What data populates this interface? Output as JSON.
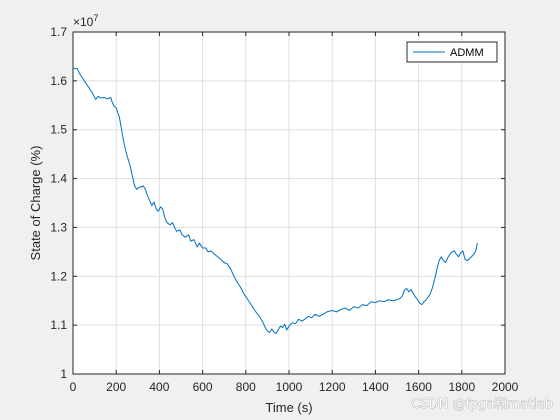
{
  "chart_data": {
    "type": "line",
    "title": "",
    "xlabel": "Time (s)",
    "ylabel": "State of Charge (%)",
    "xlim": [
      0,
      2000
    ],
    "ylim": [
      1,
      1.7
    ],
    "y_multiplier_label": "×10",
    "y_multiplier_exponent": "7",
    "x_ticks": [
      0,
      200,
      400,
      600,
      800,
      1000,
      1200,
      1400,
      1600,
      1800,
      2000
    ],
    "y_ticks": [
      1,
      1.1,
      1.2,
      1.3,
      1.4,
      1.5,
      1.6,
      1.7
    ],
    "grid": true,
    "legend_position": "top-right",
    "series": [
      {
        "name": "ADMM",
        "color": "#0072bd",
        "x": [
          0,
          20,
          30,
          45,
          60,
          75,
          90,
          105,
          115,
          130,
          145,
          160,
          175,
          180,
          190,
          200,
          215,
          225,
          235,
          245,
          255,
          265,
          275,
          285,
          295,
          305,
          315,
          325,
          335,
          345,
          355,
          365,
          375,
          385,
          395,
          405,
          415,
          425,
          435,
          450,
          460,
          470,
          480,
          495,
          505,
          520,
          535,
          545,
          560,
          575,
          585,
          600,
          615,
          625,
          640,
          655,
          670,
          690,
          700,
          715,
          730,
          745,
          760,
          775,
          790,
          805,
          820,
          835,
          850,
          865,
          880,
          890,
          900,
          910,
          920,
          930,
          940,
          950,
          960,
          970,
          980,
          990,
          1000,
          1015,
          1030,
          1045,
          1060,
          1075,
          1090,
          1105,
          1120,
          1140,
          1160,
          1180,
          1200,
          1220,
          1240,
          1260,
          1280,
          1300,
          1320,
          1340,
          1360,
          1380,
          1400,
          1420,
          1440,
          1460,
          1480,
          1500,
          1515,
          1525,
          1535,
          1545,
          1555,
          1565,
          1575,
          1585,
          1595,
          1605,
          1615,
          1625,
          1635,
          1645,
          1655,
          1665,
          1675,
          1685,
          1695,
          1705,
          1715,
          1725,
          1735,
          1745,
          1755,
          1765,
          1775,
          1785,
          1795,
          1805,
          1815,
          1825,
          1835,
          1845,
          1855,
          1865,
          1872
        ],
        "values": [
          1.625,
          1.625,
          1.615,
          1.605,
          1.595,
          1.585,
          1.575,
          1.562,
          1.568,
          1.565,
          1.566,
          1.563,
          1.566,
          1.558,
          1.548,
          1.545,
          1.525,
          1.5,
          1.475,
          1.455,
          1.44,
          1.425,
          1.405,
          1.385,
          1.378,
          1.382,
          1.383,
          1.385,
          1.378,
          1.365,
          1.355,
          1.345,
          1.352,
          1.338,
          1.333,
          1.342,
          1.338,
          1.32,
          1.31,
          1.305,
          1.31,
          1.3,
          1.292,
          1.295,
          1.285,
          1.28,
          1.285,
          1.272,
          1.275,
          1.26,
          1.268,
          1.258,
          1.258,
          1.25,
          1.252,
          1.245,
          1.24,
          1.232,
          1.228,
          1.225,
          1.215,
          1.2,
          1.188,
          1.178,
          1.165,
          1.155,
          1.145,
          1.135,
          1.125,
          1.117,
          1.105,
          1.095,
          1.088,
          1.085,
          1.092,
          1.086,
          1.083,
          1.09,
          1.098,
          1.095,
          1.102,
          1.09,
          1.098,
          1.105,
          1.103,
          1.112,
          1.108,
          1.113,
          1.118,
          1.115,
          1.122,
          1.118,
          1.123,
          1.128,
          1.13,
          1.127,
          1.132,
          1.135,
          1.13,
          1.138,
          1.135,
          1.142,
          1.14,
          1.148,
          1.146,
          1.15,
          1.148,
          1.152,
          1.15,
          1.152,
          1.155,
          1.16,
          1.172,
          1.175,
          1.168,
          1.173,
          1.165,
          1.158,
          1.152,
          1.145,
          1.142,
          1.148,
          1.152,
          1.158,
          1.165,
          1.178,
          1.195,
          1.215,
          1.232,
          1.24,
          1.232,
          1.228,
          1.238,
          1.245,
          1.25,
          1.252,
          1.245,
          1.24,
          1.248,
          1.252,
          1.235,
          1.232,
          1.236,
          1.24,
          1.245,
          1.252,
          1.268
        ]
      }
    ]
  },
  "watermark": "CSDN @fpga和matlab"
}
